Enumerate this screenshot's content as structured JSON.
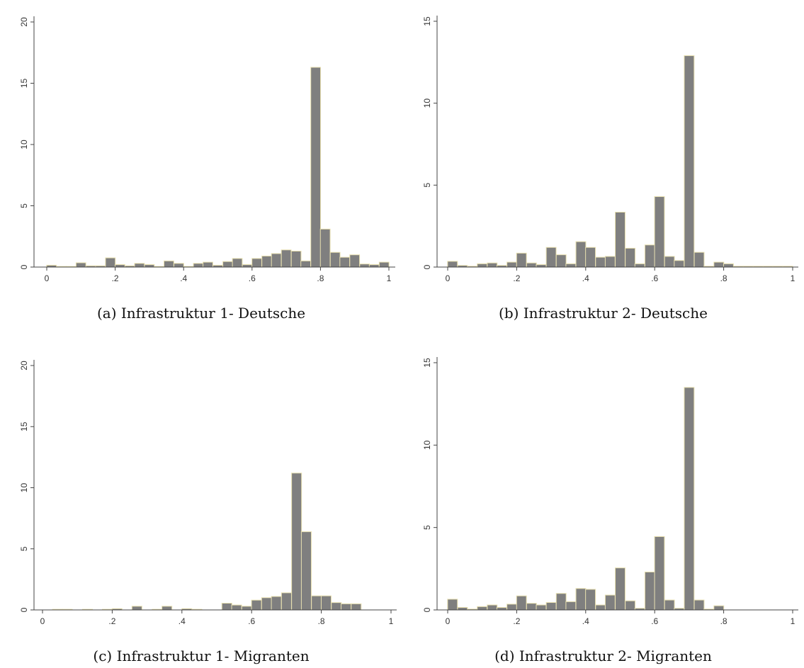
{
  "chart_data": [
    {
      "type": "bar",
      "caption": "(a) Infrastruktur 1- Deutsche",
      "xlim": [
        0,
        1
      ],
      "ylim": [
        0,
        20
      ],
      "xticks": [
        0,
        0.2,
        0.4,
        0.6,
        0.8,
        1
      ],
      "xtick_labels": [
        "0",
        ".2",
        ".4",
        ".6",
        ".8",
        "1"
      ],
      "yticks": [
        0,
        5,
        10,
        15,
        20
      ],
      "ytick_labels": [
        "0",
        "5",
        "10",
        "15",
        "20"
      ],
      "bin_width": 0.0286,
      "bin_centers": [
        0.014,
        0.043,
        0.071,
        0.1,
        0.129,
        0.157,
        0.186,
        0.214,
        0.243,
        0.271,
        0.3,
        0.329,
        0.357,
        0.386,
        0.414,
        0.443,
        0.471,
        0.5,
        0.529,
        0.557,
        0.586,
        0.614,
        0.643,
        0.671,
        0.7,
        0.729,
        0.757,
        0.786,
        0.814,
        0.843,
        0.871,
        0.9,
        0.929,
        0.957,
        0.986
      ],
      "values": [
        0.15,
        0.05,
        0.05,
        0.35,
        0.1,
        0.1,
        0.75,
        0.2,
        0.1,
        0.3,
        0.2,
        0.05,
        0.5,
        0.3,
        0.05,
        0.3,
        0.4,
        0.15,
        0.45,
        0.7,
        0.2,
        0.7,
        0.9,
        1.1,
        1.4,
        1.3,
        0.5,
        16.3,
        3.1,
        1.2,
        0.8,
        1.0,
        0.25,
        0.2,
        0.4
      ],
      "bar_color": "#7f7f7f",
      "bar_edge_color": "#e8e0b0",
      "grid": false
    },
    {
      "type": "bar",
      "caption": "(b) Infrastruktur 2- Deutsche",
      "xlim": [
        0,
        1
      ],
      "ylim": [
        0,
        15
      ],
      "xticks": [
        0,
        0.2,
        0.4,
        0.6,
        0.8,
        1
      ],
      "xtick_labels": [
        "0",
        ".2",
        ".4",
        ".6",
        ".8",
        "1"
      ],
      "yticks": [
        0,
        5,
        10,
        15
      ],
      "ytick_labels": [
        "0",
        "5",
        "10",
        "15"
      ],
      "bin_width": 0.0286,
      "bin_centers": [
        0.014,
        0.043,
        0.071,
        0.1,
        0.129,
        0.157,
        0.186,
        0.214,
        0.243,
        0.271,
        0.3,
        0.329,
        0.357,
        0.386,
        0.414,
        0.443,
        0.471,
        0.5,
        0.529,
        0.557,
        0.586,
        0.614,
        0.643,
        0.671,
        0.7,
        0.729,
        0.757,
        0.786,
        0.814,
        0.843,
        0.871,
        0.9,
        0.929,
        0.957,
        0.986
      ],
      "values": [
        0.35,
        0.1,
        0.05,
        0.2,
        0.25,
        0.1,
        0.3,
        0.85,
        0.25,
        0.15,
        1.2,
        0.75,
        0.2,
        1.55,
        1.2,
        0.6,
        0.65,
        3.35,
        1.15,
        0.2,
        1.35,
        4.3,
        0.65,
        0.4,
        12.9,
        0.9,
        0.05,
        0.3,
        0.2,
        0.05,
        0.05,
        0.05,
        0.05,
        0.05,
        0.05
      ],
      "bar_color": "#7f7f7f",
      "bar_edge_color": "#e8e0b0",
      "grid": false
    },
    {
      "type": "bar",
      "caption": "(c) Infrastruktur 1- Migranten",
      "xlim": [
        0,
        1
      ],
      "ylim": [
        0,
        20
      ],
      "xticks": [
        0,
        0.2,
        0.4,
        0.6,
        0.8,
        1
      ],
      "xtick_labels": [
        "0",
        ".2",
        ".4",
        ".6",
        ".8",
        "1"
      ],
      "yticks": [
        0,
        5,
        10,
        15,
        20
      ],
      "ytick_labels": [
        "0",
        "5",
        "10",
        "15",
        "20"
      ],
      "bin_width": 0.0286,
      "bin_centers": [
        0.014,
        0.043,
        0.071,
        0.1,
        0.129,
        0.157,
        0.186,
        0.214,
        0.243,
        0.271,
        0.3,
        0.329,
        0.357,
        0.386,
        0.414,
        0.443,
        0.471,
        0.5,
        0.529,
        0.557,
        0.586,
        0.614,
        0.643,
        0.671,
        0.7,
        0.729,
        0.757,
        0.786,
        0.814,
        0.843,
        0.871,
        0.9,
        0.929,
        0.957,
        0.986
      ],
      "values": [
        0,
        0.05,
        0.05,
        0,
        0.05,
        0,
        0.05,
        0.1,
        0,
        0.3,
        0,
        0.05,
        0.3,
        0,
        0.1,
        0.05,
        0,
        0,
        0.55,
        0.4,
        0.3,
        0.8,
        1.0,
        1.1,
        1.4,
        11.2,
        6.4,
        1.15,
        1.15,
        0.6,
        0.5,
        0.5,
        0,
        0,
        0
      ],
      "bar_color": "#7f7f7f",
      "bar_edge_color": "#e8e0b0",
      "grid": false
    },
    {
      "type": "bar",
      "caption": "(d) Infrastruktur 2- Migranten",
      "xlim": [
        0,
        1
      ],
      "ylim": [
        0,
        15
      ],
      "xticks": [
        0,
        0.2,
        0.4,
        0.6,
        0.8,
        1
      ],
      "xtick_labels": [
        "0",
        ".2",
        ".4",
        ".6",
        ".8",
        "1"
      ],
      "yticks": [
        0,
        5,
        10,
        15
      ],
      "ytick_labels": [
        "0",
        "5",
        "10",
        "15"
      ],
      "bin_width": 0.0286,
      "bin_centers": [
        0.014,
        0.043,
        0.071,
        0.1,
        0.129,
        0.157,
        0.186,
        0.214,
        0.243,
        0.271,
        0.3,
        0.329,
        0.357,
        0.386,
        0.414,
        0.443,
        0.471,
        0.5,
        0.529,
        0.557,
        0.586,
        0.614,
        0.643,
        0.671,
        0.7,
        0.729,
        0.757,
        0.786,
        0.814,
        0.843,
        0.871,
        0.9,
        0.929,
        0.957,
        0.986
      ],
      "values": [
        0.65,
        0.15,
        0.05,
        0.2,
        0.3,
        0.15,
        0.35,
        0.85,
        0.4,
        0.3,
        0.45,
        1.0,
        0.5,
        1.3,
        1.25,
        0.3,
        0.9,
        2.55,
        0.55,
        0.1,
        2.3,
        4.45,
        0.6,
        0.1,
        13.5,
        0.6,
        0.05,
        0.25,
        0,
        0,
        0,
        0,
        0,
        0,
        0
      ],
      "bar_color": "#7f7f7f",
      "bar_edge_color": "#e8e0b0",
      "grid": false
    }
  ]
}
